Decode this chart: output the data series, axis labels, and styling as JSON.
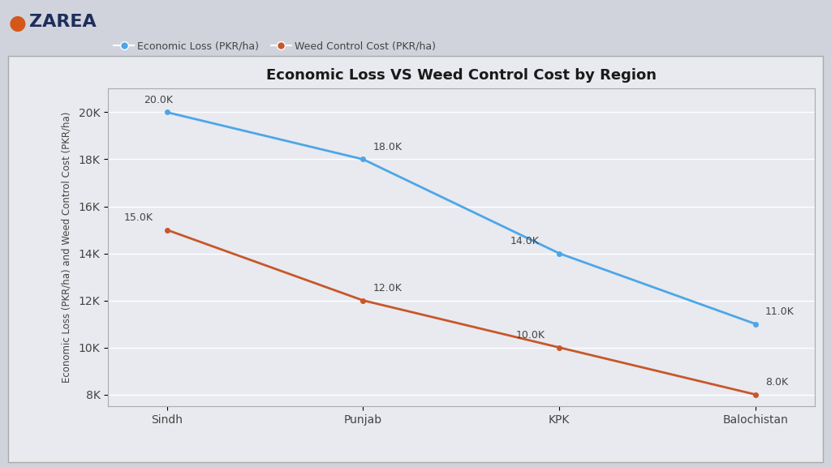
{
  "title": "Economic Loss VS Weed Control Cost by Region",
  "regions": [
    "Sindh",
    "Punjab",
    "KPK",
    "Balochistan"
  ],
  "economic_loss": [
    20000,
    18000,
    14000,
    11000
  ],
  "weed_control_cost": [
    15000,
    12000,
    10000,
    8000
  ],
  "economic_loss_labels": [
    "20.0K",
    "18.0K",
    "14.0K",
    "11.0K"
  ],
  "weed_control_labels": [
    "15.0K",
    "12.0K",
    "10.0K",
    "8.0K"
  ],
  "line_color_economic": "#4da6e8",
  "line_color_weed": "#c8572a",
  "legend_label_economic": "Economic Loss (PKR/ha)",
  "legend_label_weed": "Weed Control Cost (PKR/ha)",
  "ylabel": "Economic Loss (PKR/ha) and Weed Control Cost (PKR/ha)",
  "yticks": [
    8000,
    10000,
    12000,
    14000,
    16000,
    18000,
    20000
  ],
  "ytick_labels": [
    "8K",
    "10K",
    "12K",
    "14K",
    "16K",
    "18K",
    "20K"
  ],
  "ylim": [
    7500,
    21000
  ],
  "outer_bg_color": "#d0d3dc",
  "chart_bg_color": "#e8eaef",
  "title_fontsize": 13,
  "axis_label_fontsize": 8.5,
  "tick_fontsize": 10,
  "annotation_fontsize": 9,
  "line_width": 2.0,
  "logo_color": "#1e2e5a",
  "logo_orange": "#d4581a",
  "text_color": "#444444",
  "border_color": "#aaaaaa"
}
